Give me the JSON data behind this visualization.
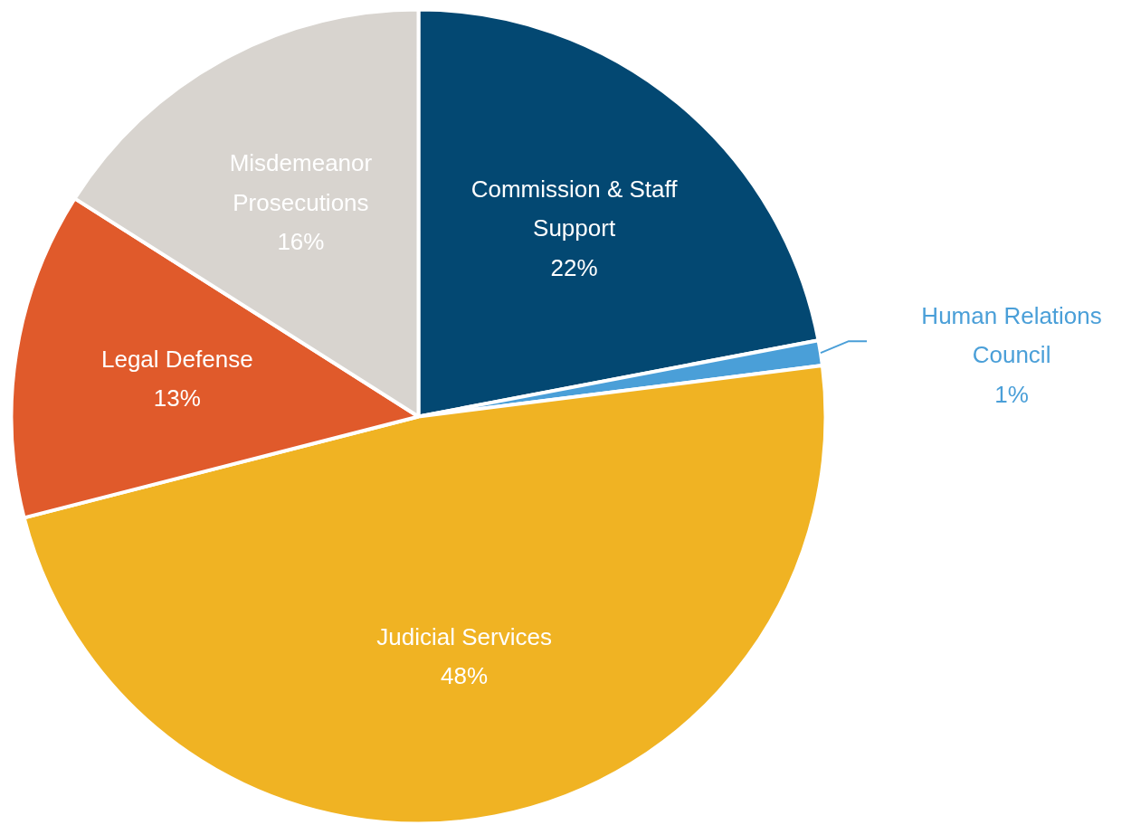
{
  "chart_data": {
    "type": "pie",
    "categories": [
      "Commission & Staff Support",
      "Human Relations Council",
      "Judicial Services",
      "Legal Defense",
      "Misdemeanor Prosecutions"
    ],
    "values": [
      22,
      1,
      48,
      13,
      16
    ],
    "value_labels": [
      "22%",
      "1%",
      "48%",
      "13%",
      "16%"
    ],
    "colors": [
      "#034872",
      "#4a9fd8",
      "#f0b323",
      "#e05a2b",
      "#d8d4cf"
    ]
  }
}
